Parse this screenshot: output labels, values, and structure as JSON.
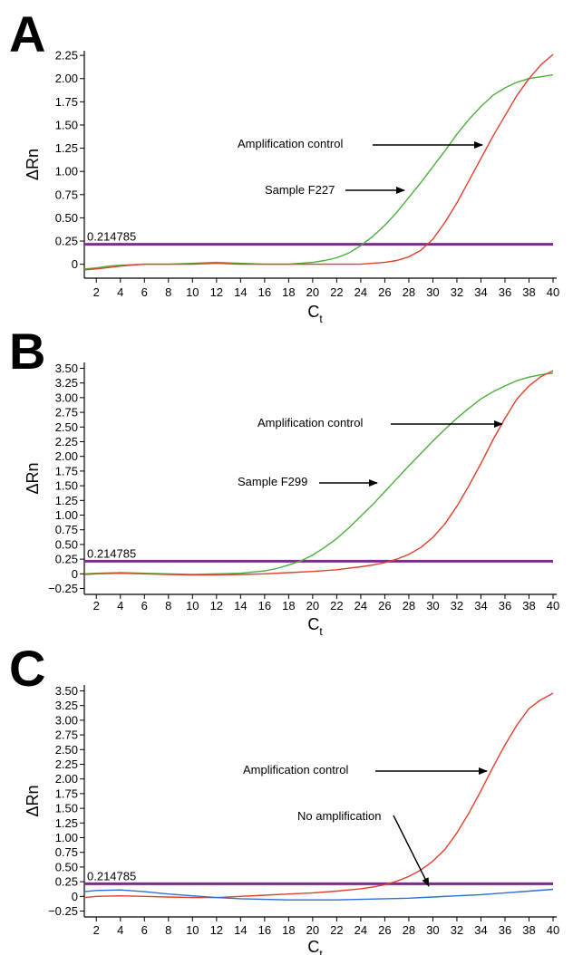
{
  "chart_data": [
    {
      "type": "line",
      "panel_label": "A",
      "xlabel": "Ct",
      "ylabel": "ΔRn",
      "xlim": [
        1,
        40
      ],
      "ylim": [
        -0.15,
        2.3
      ],
      "x_ticks": [
        2,
        4,
        6,
        8,
        10,
        12,
        14,
        16,
        18,
        20,
        22,
        24,
        26,
        28,
        30,
        32,
        34,
        36,
        38,
        40
      ],
      "y_ticks": [
        0,
        0.25,
        0.5,
        0.75,
        1.0,
        1.25,
        1.5,
        1.75,
        2.0,
        2.25
      ],
      "y_tick_labels": [
        "0",
        "0.25",
        "0.50",
        "0.75",
        "1.00",
        "1.25",
        "1.50",
        "1.75",
        "2.00",
        "2.25"
      ],
      "threshold": {
        "value": 0.214785,
        "label": "0.214785",
        "color": "#7b2c8e"
      },
      "series": [
        {
          "color": "#4caf3c",
          "x": [
            1,
            2,
            3,
            4,
            6,
            8,
            10,
            12,
            14,
            16,
            18,
            19,
            20,
            21,
            22,
            23,
            24,
            25,
            26,
            27,
            28,
            29,
            30,
            31,
            32,
            33,
            34,
            35,
            36,
            37,
            38,
            39,
            40
          ],
          "y": [
            -0.05,
            -0.04,
            -0.02,
            -0.01,
            0,
            0,
            0.01,
            0.02,
            0.01,
            0,
            0,
            0.01,
            0.02,
            0.04,
            0.07,
            0.12,
            0.2,
            0.3,
            0.42,
            0.56,
            0.72,
            0.88,
            1.05,
            1.22,
            1.4,
            1.56,
            1.7,
            1.82,
            1.9,
            1.96,
            2.0,
            2.02,
            2.04
          ]
        },
        {
          "color": "#e0402a",
          "x": [
            1,
            2,
            4,
            6,
            8,
            10,
            12,
            14,
            16,
            18,
            20,
            22,
            24,
            25,
            26,
            27,
            28,
            29,
            30,
            31,
            32,
            33,
            34,
            35,
            36,
            37,
            38,
            39,
            40
          ],
          "y": [
            -0.06,
            -0.05,
            -0.02,
            0,
            0,
            0,
            0.01,
            0,
            0,
            0,
            0,
            0,
            0,
            0.01,
            0.02,
            0.04,
            0.08,
            0.15,
            0.27,
            0.45,
            0.66,
            0.9,
            1.14,
            1.38,
            1.6,
            1.82,
            2.0,
            2.15,
            2.26
          ]
        }
      ],
      "annotations": [
        {
          "text": "Amplification control"
        },
        {
          "text": "Sample F227"
        }
      ]
    },
    {
      "type": "line",
      "panel_label": "B",
      "xlabel": "Ct",
      "ylabel": "ΔRn",
      "xlim": [
        1,
        40
      ],
      "ylim": [
        -0.35,
        3.6
      ],
      "x_ticks": [
        2,
        4,
        6,
        8,
        10,
        12,
        14,
        16,
        18,
        20,
        22,
        24,
        26,
        28,
        30,
        32,
        34,
        36,
        38,
        40
      ],
      "y_ticks": [
        -0.25,
        0,
        0.25,
        0.5,
        0.75,
        1.0,
        1.25,
        1.5,
        1.75,
        2.0,
        2.25,
        2.5,
        2.75,
        3.0,
        3.25,
        3.5
      ],
      "y_tick_labels": [
        "−0.25",
        "0",
        "0.25",
        "0.50",
        "0.75",
        "1.00",
        "1.25",
        "1.50",
        "1.75",
        "2.00",
        "2.25",
        "2.50",
        "2.75",
        "3.00",
        "3.25",
        "3.50"
      ],
      "threshold": {
        "value": 0.214785,
        "label": "0.214785",
        "color": "#7b2c8e"
      },
      "series": [
        {
          "color": "#4caf3c",
          "x": [
            1,
            2,
            4,
            6,
            8,
            10,
            12,
            14,
            16,
            17,
            18,
            19,
            20,
            21,
            22,
            23,
            24,
            25,
            26,
            27,
            28,
            29,
            30,
            31,
            32,
            33,
            34,
            35,
            36,
            37,
            38,
            39,
            40
          ],
          "y": [
            0,
            0.01,
            0.02,
            0.01,
            0,
            -0.01,
            0,
            0.01,
            0.05,
            0.09,
            0.15,
            0.22,
            0.32,
            0.45,
            0.6,
            0.78,
            0.98,
            1.18,
            1.4,
            1.62,
            1.84,
            2.05,
            2.26,
            2.46,
            2.65,
            2.82,
            2.98,
            3.1,
            3.2,
            3.29,
            3.35,
            3.39,
            3.42
          ]
        },
        {
          "color": "#e0402a",
          "x": [
            1,
            2,
            4,
            6,
            8,
            10,
            12,
            14,
            16,
            18,
            20,
            22,
            24,
            25,
            26,
            27,
            28,
            29,
            30,
            31,
            32,
            33,
            34,
            35,
            36,
            37,
            38,
            39,
            40
          ],
          "y": [
            -0.01,
            0,
            0.01,
            0,
            -0.01,
            -0.02,
            -0.02,
            -0.01,
            0,
            0.02,
            0.04,
            0.07,
            0.12,
            0.15,
            0.19,
            0.25,
            0.33,
            0.45,
            0.62,
            0.85,
            1.15,
            1.5,
            1.88,
            2.28,
            2.65,
            2.98,
            3.2,
            3.36,
            3.46
          ]
        }
      ],
      "annotations": [
        {
          "text": "Amplification control"
        },
        {
          "text": "Sample F299"
        }
      ]
    },
    {
      "type": "line",
      "panel_label": "C",
      "xlabel": "Ct",
      "ylabel": "ΔRn",
      "xlim": [
        1,
        40
      ],
      "ylim": [
        -0.35,
        3.6
      ],
      "x_ticks": [
        2,
        4,
        6,
        8,
        10,
        12,
        14,
        16,
        18,
        20,
        22,
        24,
        26,
        28,
        30,
        32,
        34,
        36,
        38,
        40
      ],
      "y_ticks": [
        -0.25,
        0,
        0.25,
        0.5,
        0.75,
        1.0,
        1.25,
        1.5,
        1.75,
        2.0,
        2.25,
        2.5,
        2.75,
        3.0,
        3.25,
        3.5
      ],
      "y_tick_labels": [
        "−0.25",
        "0",
        "0.25",
        "0.50",
        "0.75",
        "1.00",
        "1.25",
        "1.50",
        "1.75",
        "2.00",
        "2.25",
        "2.50",
        "2.75",
        "3.00",
        "3.25",
        "3.50"
      ],
      "threshold": {
        "value": 0.214785,
        "label": "0.214785",
        "color": "#7b2c8e"
      },
      "series": [
        {
          "color": "#e0402a",
          "x": [
            1,
            2,
            4,
            6,
            8,
            10,
            12,
            14,
            16,
            18,
            20,
            22,
            24,
            25,
            26,
            27,
            28,
            29,
            30,
            31,
            32,
            33,
            34,
            35,
            36,
            37,
            38,
            39,
            40
          ],
          "y": [
            -0.02,
            0,
            0.01,
            0,
            -0.01,
            -0.02,
            -0.02,
            0,
            0.02,
            0.04,
            0.06,
            0.09,
            0.13,
            0.16,
            0.2,
            0.26,
            0.34,
            0.45,
            0.6,
            0.8,
            1.08,
            1.42,
            1.8,
            2.2,
            2.58,
            2.92,
            3.2,
            3.35,
            3.46
          ]
        },
        {
          "color": "#2e6fd6",
          "x": [
            1,
            2,
            4,
            6,
            8,
            10,
            12,
            14,
            16,
            18,
            20,
            22,
            24,
            26,
            28,
            30,
            32,
            34,
            36,
            38,
            40
          ],
          "y": [
            0.08,
            0.1,
            0.11,
            0.08,
            0.04,
            0.01,
            -0.02,
            -0.04,
            -0.05,
            -0.06,
            -0.06,
            -0.06,
            -0.05,
            -0.04,
            -0.03,
            -0.01,
            0.01,
            0.03,
            0.06,
            0.09,
            0.12
          ]
        }
      ],
      "annotations": [
        {
          "text": "Amplification control"
        },
        {
          "text": "No amplification"
        }
      ]
    }
  ]
}
